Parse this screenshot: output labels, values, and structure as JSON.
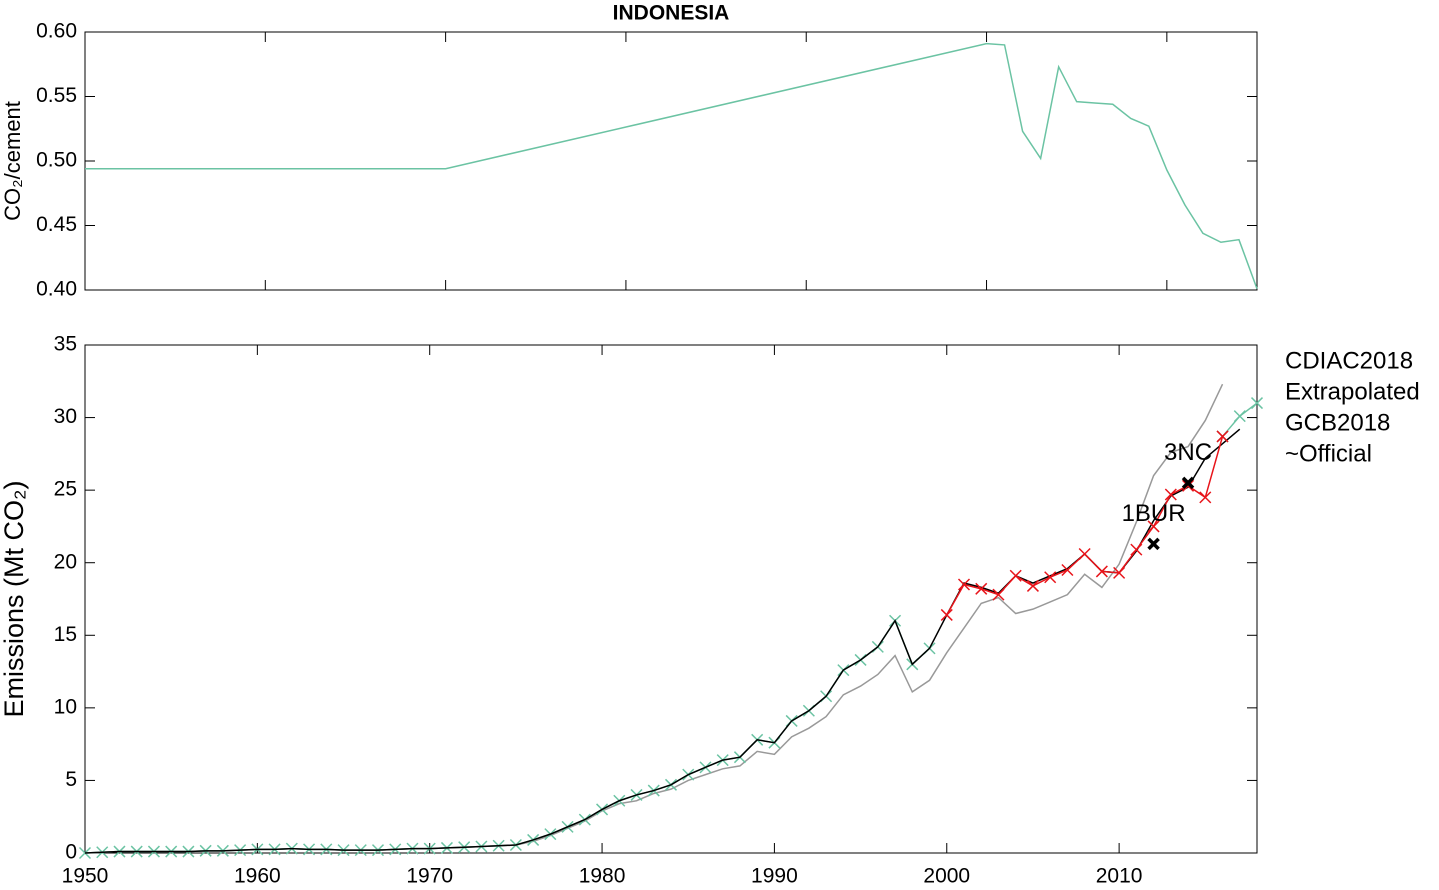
{
  "chart_data": [
    {
      "type": "line",
      "title": "INDONESIA",
      "ylabel": "CO₂/cement",
      "color": "#6bc3a3",
      "x": [
        1950,
        1970,
        2000,
        2001,
        2002,
        2003,
        2004,
        2005,
        2006,
        2007,
        2008,
        2009,
        2010,
        2011,
        2012,
        2013,
        2014,
        2015
      ],
      "values": [
        0.494,
        0.494,
        0.591,
        0.59,
        0.523,
        0.502,
        0.573,
        0.546,
        0.545,
        0.544,
        0.533,
        0.527,
        0.493,
        0.466,
        0.444,
        0.437,
        0.439,
        0.401
      ],
      "xlim": [
        1950,
        2015
      ],
      "xticks": [
        1960,
        1970,
        1980,
        1990,
        2000,
        2010
      ],
      "ylim": [
        0.4,
        0.6
      ],
      "yticks": [
        {
          "value": 0.4,
          "label": "0.40"
        },
        {
          "value": 0.45,
          "label": "0.45"
        },
        {
          "value": 0.5,
          "label": "0.50"
        },
        {
          "value": 0.55,
          "label": "0.55"
        },
        {
          "value": 0.6,
          "label": "0.60"
        }
      ]
    },
    {
      "type": "line",
      "ylabel": "Emissions (Mt CO₂)",
      "x": [
        1950,
        1951,
        1952,
        1953,
        1954,
        1955,
        1956,
        1957,
        1958,
        1959,
        1960,
        1961,
        1962,
        1963,
        1964,
        1965,
        1966,
        1967,
        1968,
        1969,
        1970,
        1971,
        1972,
        1973,
        1974,
        1975,
        1976,
        1977,
        1978,
        1979,
        1980,
        1981,
        1982,
        1983,
        1984,
        1985,
        1986,
        1987,
        1988,
        1989,
        1990,
        1991,
        1992,
        1993,
        1994,
        1995,
        1996,
        1997,
        1998,
        1999,
        2000,
        2001,
        2002,
        2003,
        2004,
        2005,
        2006,
        2007,
        2008,
        2009,
        2010,
        2011,
        2012,
        2013,
        2014,
        2015,
        2016,
        2017,
        2018
      ],
      "series": [
        {
          "name": "CDIAC2018",
          "color": "#999999",
          "markers": false,
          "values": [
            0.0,
            0.05,
            0.1,
            0.1,
            0.1,
            0.1,
            0.1,
            0.15,
            0.15,
            0.2,
            0.25,
            0.25,
            0.3,
            0.25,
            0.25,
            0.2,
            0.2,
            0.2,
            0.25,
            0.3,
            0.3,
            0.35,
            0.4,
            0.45,
            0.5,
            0.55,
            0.8,
            1.2,
            1.7,
            2.2,
            2.9,
            3.4,
            3.6,
            4.1,
            4.4,
            5.0,
            5.4,
            5.8,
            6.0,
            7.0,
            6.8,
            8.0,
            8.6,
            9.4,
            10.9,
            11.5,
            12.3,
            13.6,
            11.1,
            11.9,
            13.8,
            15.5,
            17.2,
            17.6,
            16.5,
            16.8,
            17.3,
            17.8,
            19.2,
            18.3,
            19.9,
            22.8,
            26.0,
            27.6,
            28.0,
            29.8,
            32.3,
            null,
            null
          ]
        },
        {
          "name": "Extrapolated",
          "color": "#6bc3a3",
          "markers": true,
          "values": [
            0.0,
            0.05,
            0.1,
            0.1,
            0.1,
            0.1,
            0.1,
            0.15,
            0.15,
            0.2,
            0.25,
            0.25,
            0.3,
            0.25,
            0.25,
            0.2,
            0.2,
            0.2,
            0.25,
            0.3,
            0.3,
            0.35,
            0.4,
            0.45,
            0.5,
            0.55,
            0.9,
            1.3,
            1.8,
            2.3,
            3.0,
            3.6,
            4.0,
            4.3,
            4.7,
            5.4,
            5.9,
            6.4,
            6.6,
            7.8,
            7.6,
            9.1,
            9.8,
            10.8,
            12.6,
            13.3,
            14.2,
            16.0,
            13.0,
            14.1,
            null,
            null,
            null,
            null,
            null,
            null,
            null,
            null,
            null,
            null,
            null,
            null,
            null,
            null,
            null,
            null,
            28.7,
            30.1,
            31.0
          ]
        },
        {
          "name": "GCB2018",
          "color": "#000000",
          "markers": false,
          "values": [
            0.0,
            0.05,
            0.1,
            0.1,
            0.1,
            0.1,
            0.1,
            0.15,
            0.15,
            0.2,
            0.25,
            0.25,
            0.3,
            0.25,
            0.25,
            0.2,
            0.2,
            0.2,
            0.25,
            0.3,
            0.3,
            0.35,
            0.4,
            0.45,
            0.5,
            0.55,
            0.9,
            1.3,
            1.8,
            2.3,
            3.0,
            3.6,
            4.0,
            4.3,
            4.7,
            5.4,
            5.9,
            6.4,
            6.6,
            7.8,
            7.6,
            9.1,
            9.8,
            10.8,
            12.6,
            13.3,
            14.2,
            16.0,
            13.0,
            14.1,
            16.4,
            18.6,
            18.3,
            17.9,
            19.1,
            18.6,
            19.1,
            19.6,
            20.6,
            19.4,
            19.3,
            20.8,
            22.9,
            24.6,
            25.2,
            27.2,
            28.2,
            29.2,
            null
          ]
        },
        {
          "name": "~Official",
          "color": "#e8141a",
          "markers": true,
          "values": [
            null,
            null,
            null,
            null,
            null,
            null,
            null,
            null,
            null,
            null,
            null,
            null,
            null,
            null,
            null,
            null,
            null,
            null,
            null,
            null,
            null,
            null,
            null,
            null,
            null,
            null,
            null,
            null,
            null,
            null,
            null,
            null,
            null,
            null,
            null,
            null,
            null,
            null,
            null,
            null,
            null,
            null,
            null,
            null,
            null,
            null,
            null,
            null,
            null,
            null,
            16.4,
            18.5,
            18.2,
            17.8,
            19.1,
            18.4,
            19.0,
            19.5,
            20.6,
            19.4,
            19.3,
            20.9,
            22.5,
            24.7,
            25.3,
            24.5,
            28.7,
            null,
            null
          ]
        }
      ],
      "points": [
        {
          "label": "1BUR",
          "x": 2012,
          "y": 21.3
        },
        {
          "label": "3NC",
          "x": 2014,
          "y": 25.5
        }
      ],
      "xlim": [
        1950,
        2018
      ],
      "xticks": [
        1950,
        1960,
        1970,
        1980,
        1990,
        2000,
        2010
      ],
      "ylim": [
        0,
        35
      ],
      "yticks": [
        0,
        5,
        10,
        15,
        20,
        25,
        30,
        35
      ],
      "legend": "outside-right"
    }
  ]
}
